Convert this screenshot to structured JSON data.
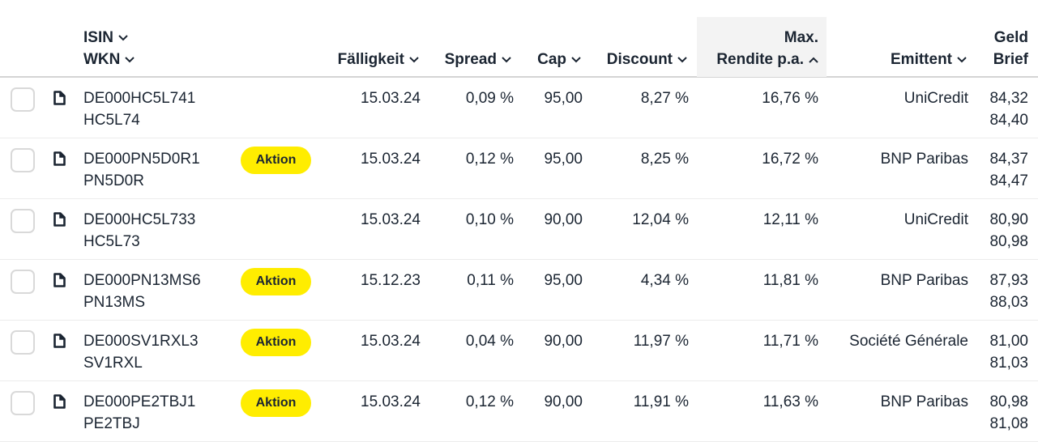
{
  "header": {
    "isin": "ISIN",
    "wkn": "WKN",
    "faelligkeit": "Fälligkeit",
    "spread": "Spread",
    "cap": "Cap",
    "discount": "Discount",
    "rendite_line1": "Max.",
    "rendite_line2": "Rendite p.a.",
    "emittent": "Emittent",
    "geld": "Geld",
    "brief": "Brief",
    "sorted_column": "Rendite p.a.",
    "sort_direction": "ascending-icon"
  },
  "badge_color": "#ffed00",
  "rows": [
    {
      "isin": "DE000HC5L741",
      "wkn": "HC5L74",
      "badge": "",
      "faelligkeit": "15.03.24",
      "spread": "0,09 %",
      "cap": "95,00",
      "discount": "8,27 %",
      "rendite": "16,76 %",
      "emittent": "UniCredit",
      "geld": "84,32",
      "brief": "84,40"
    },
    {
      "isin": "DE000PN5D0R1",
      "wkn": "PN5D0R",
      "badge": "Aktion",
      "faelligkeit": "15.03.24",
      "spread": "0,12 %",
      "cap": "95,00",
      "discount": "8,25 %",
      "rendite": "16,72 %",
      "emittent": "BNP Paribas",
      "geld": "84,37",
      "brief": "84,47"
    },
    {
      "isin": "DE000HC5L733",
      "wkn": "HC5L73",
      "badge": "",
      "faelligkeit": "15.03.24",
      "spread": "0,10 %",
      "cap": "90,00",
      "discount": "12,04 %",
      "rendite": "12,11 %",
      "emittent": "UniCredit",
      "geld": "80,90",
      "brief": "80,98"
    },
    {
      "isin": "DE000PN13MS6",
      "wkn": "PN13MS",
      "badge": "Aktion",
      "faelligkeit": "15.12.23",
      "spread": "0,11 %",
      "cap": "95,00",
      "discount": "4,34 %",
      "rendite": "11,81 %",
      "emittent": "BNP Paribas",
      "geld": "87,93",
      "brief": "88,03"
    },
    {
      "isin": "DE000SV1RXL3",
      "wkn": "SV1RXL",
      "badge": "Aktion",
      "faelligkeit": "15.03.24",
      "spread": "0,04 %",
      "cap": "90,00",
      "discount": "11,97 %",
      "rendite": "11,71 %",
      "emittent": "Société Générale",
      "geld": "81,00",
      "brief": "81,03"
    },
    {
      "isin": "DE000PE2TBJ1",
      "wkn": "PE2TBJ",
      "badge": "Aktion",
      "faelligkeit": "15.03.24",
      "spread": "0,12 %",
      "cap": "90,00",
      "discount": "11,91 %",
      "rendite": "11,63 %",
      "emittent": "BNP Paribas",
      "geld": "80,98",
      "brief": "81,08"
    }
  ]
}
